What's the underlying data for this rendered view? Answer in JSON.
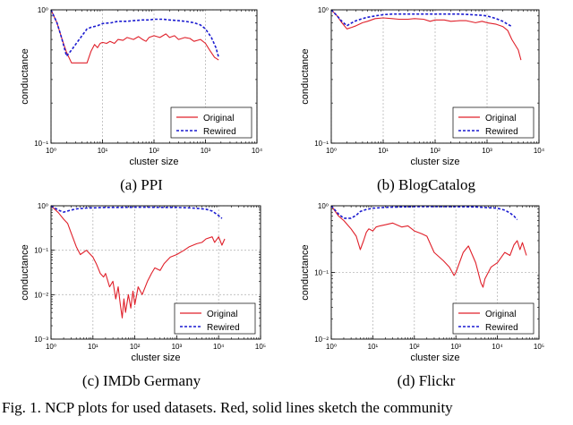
{
  "colors": {
    "original": "#e0202a",
    "rewired": "#1a1ad0",
    "grid": "#b8b8b8",
    "axis": "#000000"
  },
  "figure_caption": "Fig. 1.  NCP plots for used datasets. Red, solid lines sketch the community",
  "chart_data": [
    {
      "id": "ppi",
      "type": "line",
      "caption": "(a)  PPI",
      "xlabel": "cluster size",
      "ylabel": "conductance",
      "xscale": "log",
      "yscale": "log",
      "xlim": [
        1,
        10000
      ],
      "ylim": [
        0.1,
        1
      ],
      "xtick_exponents": [
        0,
        1,
        2,
        3,
        4
      ],
      "ytick_exponents": [
        -1,
        0
      ],
      "grid": true,
      "legend_position": "lower-right",
      "series": [
        {
          "name": "Original",
          "style": "solid",
          "x": [
            1,
            1.3,
            1.6,
            2,
            2.5,
            3,
            4,
            5,
            6,
            7,
            8,
            9,
            10,
            12,
            14,
            17,
            20,
            25,
            30,
            40,
            50,
            60,
            70,
            80,
            100,
            130,
            170,
            200,
            250,
            300,
            400,
            500,
            600,
            800,
            1000,
            1200,
            1500,
            1800
          ],
          "y": [
            1.0,
            0.8,
            0.62,
            0.48,
            0.4,
            0.4,
            0.4,
            0.4,
            0.49,
            0.55,
            0.52,
            0.56,
            0.57,
            0.56,
            0.58,
            0.56,
            0.6,
            0.59,
            0.62,
            0.6,
            0.63,
            0.6,
            0.58,
            0.62,
            0.64,
            0.62,
            0.66,
            0.62,
            0.64,
            0.6,
            0.62,
            0.61,
            0.58,
            0.6,
            0.56,
            0.5,
            0.44,
            0.42
          ]
        },
        {
          "name": "Rewired",
          "style": "dashed",
          "x": [
            1,
            1.3,
            1.6,
            2,
            2.5,
            3,
            4,
            5,
            6,
            8,
            10,
            15,
            20,
            30,
            40,
            60,
            80,
            100,
            150,
            200,
            300,
            400,
            600,
            800,
            1000,
            1300,
            1600,
            1800
          ],
          "y": [
            1.0,
            0.8,
            0.62,
            0.45,
            0.5,
            0.55,
            0.64,
            0.72,
            0.74,
            0.76,
            0.79,
            0.8,
            0.82,
            0.82,
            0.83,
            0.84,
            0.84,
            0.85,
            0.85,
            0.84,
            0.83,
            0.82,
            0.8,
            0.77,
            0.72,
            0.62,
            0.52,
            0.44
          ]
        }
      ]
    },
    {
      "id": "blogcatalog",
      "type": "line",
      "caption": "(b)  BlogCatalog",
      "xlabel": "cluster size",
      "ylabel": "conductance",
      "xscale": "log",
      "yscale": "log",
      "xlim": [
        1,
        10000
      ],
      "ylim": [
        0.1,
        1
      ],
      "xtick_exponents": [
        0,
        1,
        2,
        3,
        4
      ],
      "ytick_exponents": [
        -1,
        0
      ],
      "grid": true,
      "legend_position": "lower-right",
      "series": [
        {
          "name": "Original",
          "style": "solid",
          "x": [
            1,
            1.3,
            1.6,
            2,
            2.5,
            3,
            4,
            5,
            7,
            10,
            15,
            20,
            30,
            40,
            60,
            80,
            100,
            150,
            200,
            300,
            400,
            600,
            800,
            1000,
            1500,
            2000,
            2500,
            3000,
            4000,
            4500
          ],
          "y": [
            1.0,
            0.9,
            0.8,
            0.72,
            0.74,
            0.76,
            0.8,
            0.82,
            0.86,
            0.87,
            0.86,
            0.85,
            0.85,
            0.86,
            0.85,
            0.82,
            0.84,
            0.84,
            0.82,
            0.83,
            0.83,
            0.8,
            0.82,
            0.8,
            0.78,
            0.75,
            0.7,
            0.6,
            0.5,
            0.42
          ]
        },
        {
          "name": "Rewired",
          "style": "dashed",
          "x": [
            1,
            1.3,
            1.6,
            2,
            2.5,
            3,
            4,
            5,
            7,
            10,
            15,
            20,
            30,
            50,
            100,
            200,
            300,
            500,
            800,
            1000,
            1500,
            2000,
            2500,
            3000
          ],
          "y": [
            1.0,
            0.9,
            0.82,
            0.76,
            0.8,
            0.83,
            0.86,
            0.88,
            0.9,
            0.92,
            0.93,
            0.93,
            0.93,
            0.93,
            0.93,
            0.93,
            0.93,
            0.92,
            0.91,
            0.9,
            0.86,
            0.82,
            0.78,
            0.75
          ]
        }
      ]
    },
    {
      "id": "imdb-germany",
      "type": "line",
      "caption": "(c)  IMDb Germany",
      "xlabel": "cluster size",
      "ylabel": "conductance",
      "xscale": "log",
      "yscale": "log",
      "xlim": [
        1,
        100000
      ],
      "ylim": [
        0.001,
        1
      ],
      "xtick_exponents": [
        0,
        1,
        2,
        3,
        4,
        5
      ],
      "ytick_exponents": [
        -3,
        -2,
        -1,
        0
      ],
      "grid": true,
      "legend_position": "lower-right",
      "series": [
        {
          "name": "Original",
          "style": "solid",
          "x": [
            1,
            1.5,
            2,
            2.5,
            3,
            4,
            5,
            7,
            10,
            12,
            15,
            18,
            20,
            25,
            30,
            35,
            40,
            45,
            50,
            55,
            60,
            70,
            80,
            90,
            100,
            120,
            150,
            200,
            250,
            300,
            400,
            500,
            700,
            1000,
            1500,
            2000,
            3000,
            4000,
            5000,
            7000,
            8000,
            10000,
            12000,
            14000
          ],
          "y": [
            1.0,
            0.7,
            0.5,
            0.4,
            0.25,
            0.12,
            0.08,
            0.1,
            0.07,
            0.05,
            0.03,
            0.025,
            0.03,
            0.015,
            0.02,
            0.008,
            0.015,
            0.006,
            0.003,
            0.008,
            0.004,
            0.01,
            0.005,
            0.012,
            0.006,
            0.015,
            0.01,
            0.02,
            0.03,
            0.04,
            0.035,
            0.05,
            0.07,
            0.08,
            0.1,
            0.12,
            0.14,
            0.15,
            0.18,
            0.2,
            0.15,
            0.2,
            0.13,
            0.18
          ]
        },
        {
          "name": "Rewired",
          "style": "dashed",
          "x": [
            1,
            1.5,
            2,
            3,
            4,
            5,
            7,
            10,
            20,
            50,
            100,
            200,
            500,
            1000,
            2000,
            3000,
            5000,
            7000,
            10000,
            12000
          ],
          "y": [
            1.0,
            0.8,
            0.72,
            0.8,
            0.85,
            0.87,
            0.89,
            0.9,
            0.92,
            0.92,
            0.93,
            0.93,
            0.92,
            0.92,
            0.9,
            0.88,
            0.84,
            0.76,
            0.6,
            0.52
          ]
        }
      ]
    },
    {
      "id": "flickr",
      "type": "line",
      "caption": "(d)  Flickr",
      "xlabel": "cluster size",
      "ylabel": "conductance",
      "xscale": "log",
      "yscale": "log",
      "xlim": [
        1,
        100000
      ],
      "ylim": [
        0.01,
        1
      ],
      "xtick_exponents": [
        0,
        1,
        2,
        3,
        4,
        5
      ],
      "ytick_exponents": [
        -2,
        -1,
        0
      ],
      "grid": true,
      "legend_position": "lower-right",
      "series": [
        {
          "name": "Original",
          "style": "solid",
          "x": [
            1,
            1.5,
            2,
            3,
            4,
            5,
            6,
            7,
            8,
            10,
            12,
            15,
            20,
            30,
            50,
            70,
            100,
            150,
            200,
            300,
            500,
            700,
            900,
            1000,
            1500,
            2000,
            3000,
            4000,
            4500,
            5000,
            7000,
            10000,
            15000,
            20000,
            25000,
            30000,
            35000,
            40000,
            50000
          ],
          "y": [
            1.0,
            0.7,
            0.6,
            0.45,
            0.35,
            0.22,
            0.3,
            0.4,
            0.45,
            0.42,
            0.48,
            0.5,
            0.52,
            0.55,
            0.48,
            0.5,
            0.42,
            0.38,
            0.35,
            0.2,
            0.15,
            0.12,
            0.09,
            0.1,
            0.2,
            0.25,
            0.14,
            0.07,
            0.06,
            0.08,
            0.12,
            0.14,
            0.2,
            0.18,
            0.26,
            0.3,
            0.22,
            0.28,
            0.18
          ]
        },
        {
          "name": "Rewired",
          "style": "dashed",
          "x": [
            1,
            1.5,
            2,
            3,
            4,
            5,
            7,
            10,
            20,
            50,
            100,
            300,
            1000,
            3000,
            10000,
            15000,
            20000,
            25000,
            30000
          ],
          "y": [
            1.0,
            0.75,
            0.65,
            0.65,
            0.72,
            0.82,
            0.88,
            0.92,
            0.95,
            0.96,
            0.97,
            0.97,
            0.97,
            0.96,
            0.92,
            0.86,
            0.78,
            0.7,
            0.62
          ]
        }
      ]
    }
  ]
}
